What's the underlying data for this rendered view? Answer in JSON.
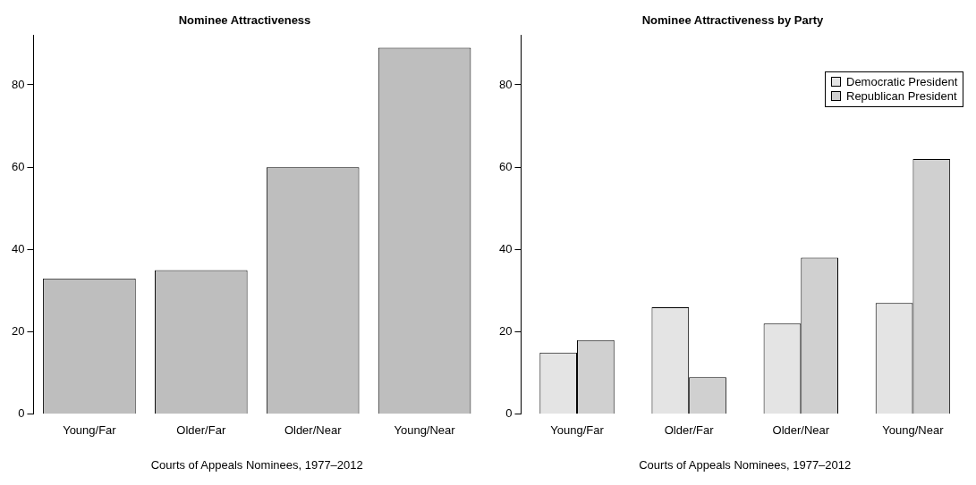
{
  "chart_data": [
    {
      "type": "bar",
      "title": "Nominee Attractiveness",
      "xlabel": "Courts of Appeals Nominees, 1977–2012",
      "categories": [
        "Young/Far",
        "Older/Far",
        "Older/Near",
        "Young/Near"
      ],
      "values": [
        33,
        35,
        60,
        89
      ],
      "color": "#bebebe",
      "ylim": [
        0,
        92
      ],
      "yticks": [
        0,
        20,
        40,
        60,
        80
      ],
      "grid": false,
      "legend": false
    },
    {
      "type": "bar",
      "title": "Nominee Attractiveness by Party",
      "xlabel": "Courts of Appeals Nominees, 1977–2012",
      "categories": [
        "Young/Far",
        "Older/Far",
        "Older/Near",
        "Young/Near"
      ],
      "series": [
        {
          "name": "Democratic President",
          "color": "#e4e4e4",
          "values": [
            15,
            26,
            22,
            27
          ]
        },
        {
          "name": "Republican President",
          "color": "#d0d0d0",
          "values": [
            18,
            9,
            38,
            62
          ]
        }
      ],
      "ylim": [
        0,
        92
      ],
      "yticks": [
        0,
        20,
        40,
        60,
        80
      ],
      "grid": false,
      "legend": "top right"
    }
  ]
}
